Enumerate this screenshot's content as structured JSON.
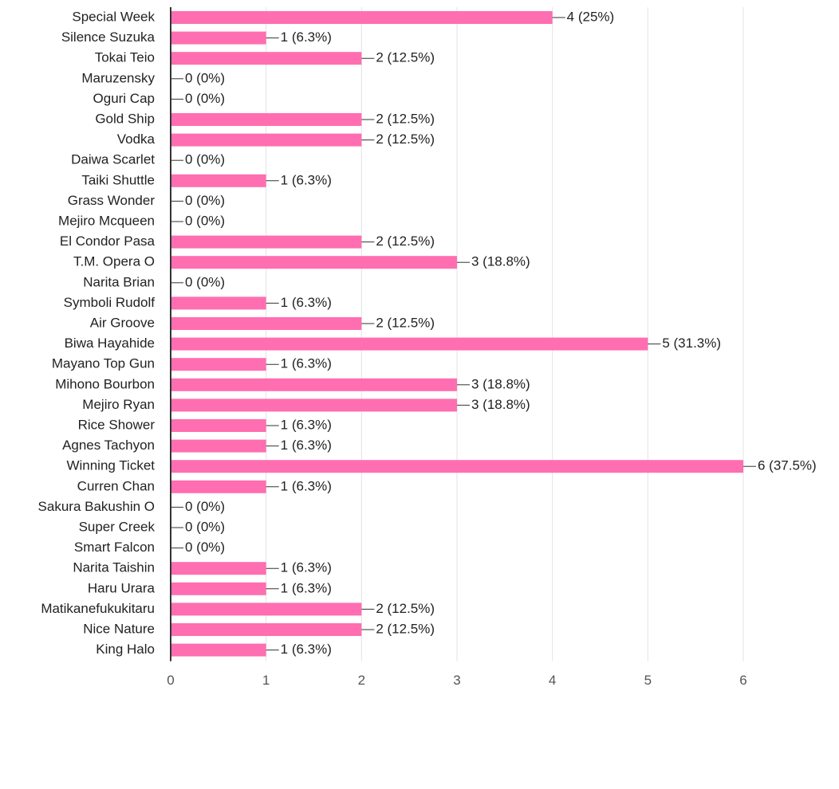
{
  "chart_data": {
    "type": "bar",
    "categories": [
      "Special Week",
      "Silence Suzuka",
      "Tokai Teio",
      "Maruzensky",
      "Oguri Cap",
      "Gold Ship",
      "Vodka",
      "Daiwa Scarlet",
      "Taiki Shuttle",
      "Grass Wonder",
      "Mejiro Mcqueen",
      "El Condor Pasa",
      "T.M. Opera O",
      "Narita Brian",
      "Symboli Rudolf",
      "Air Groove",
      "Biwa Hayahide",
      "Mayano Top Gun",
      "Mihono Bourbon",
      "Mejiro Ryan",
      "Rice Shower",
      "Agnes Tachyon",
      "Winning Ticket",
      "Curren Chan",
      "Sakura Bakushin O",
      "Super Creek",
      "Smart Falcon",
      "Narita Taishin",
      "Haru Urara",
      "Matikanefukukitaru",
      "Nice Nature",
      "King Halo"
    ],
    "values": [
      4,
      1,
      2,
      0,
      0,
      2,
      2,
      0,
      1,
      0,
      0,
      2,
      3,
      0,
      1,
      2,
      5,
      1,
      3,
      3,
      1,
      1,
      6,
      1,
      0,
      0,
      0,
      1,
      1,
      2,
      2,
      1
    ],
    "value_labels": [
      "4 (25%)",
      "1 (6.3%)",
      "2 (12.5%)",
      "0 (0%)",
      "0 (0%)",
      "2 (12.5%)",
      "2 (12.5%)",
      "0 (0%)",
      "1 (6.3%)",
      "0 (0%)",
      "0 (0%)",
      "2 (12.5%)",
      "3 (18.8%)",
      "0 (0%)",
      "1 (6.3%)",
      "2 (12.5%)",
      "5 (31.3%)",
      "1 (6.3%)",
      "3 (18.8%)",
      "3 (18.8%)",
      "1 (6.3%)",
      "1 (6.3%)",
      "6 (37.5%)",
      "1 (6.3%)",
      "0 (0%)",
      "0 (0%)",
      "0 (0%)",
      "1 (6.3%)",
      "1 (6.3%)",
      "2 (12.5%)",
      "2 (12.5%)",
      "1 (6.3%)"
    ],
    "color": "#ff6eb0",
    "xlim": [
      0,
      6
    ],
    "xticks": [
      0,
      1,
      2,
      3,
      4,
      5,
      6
    ],
    "grid": true
  }
}
